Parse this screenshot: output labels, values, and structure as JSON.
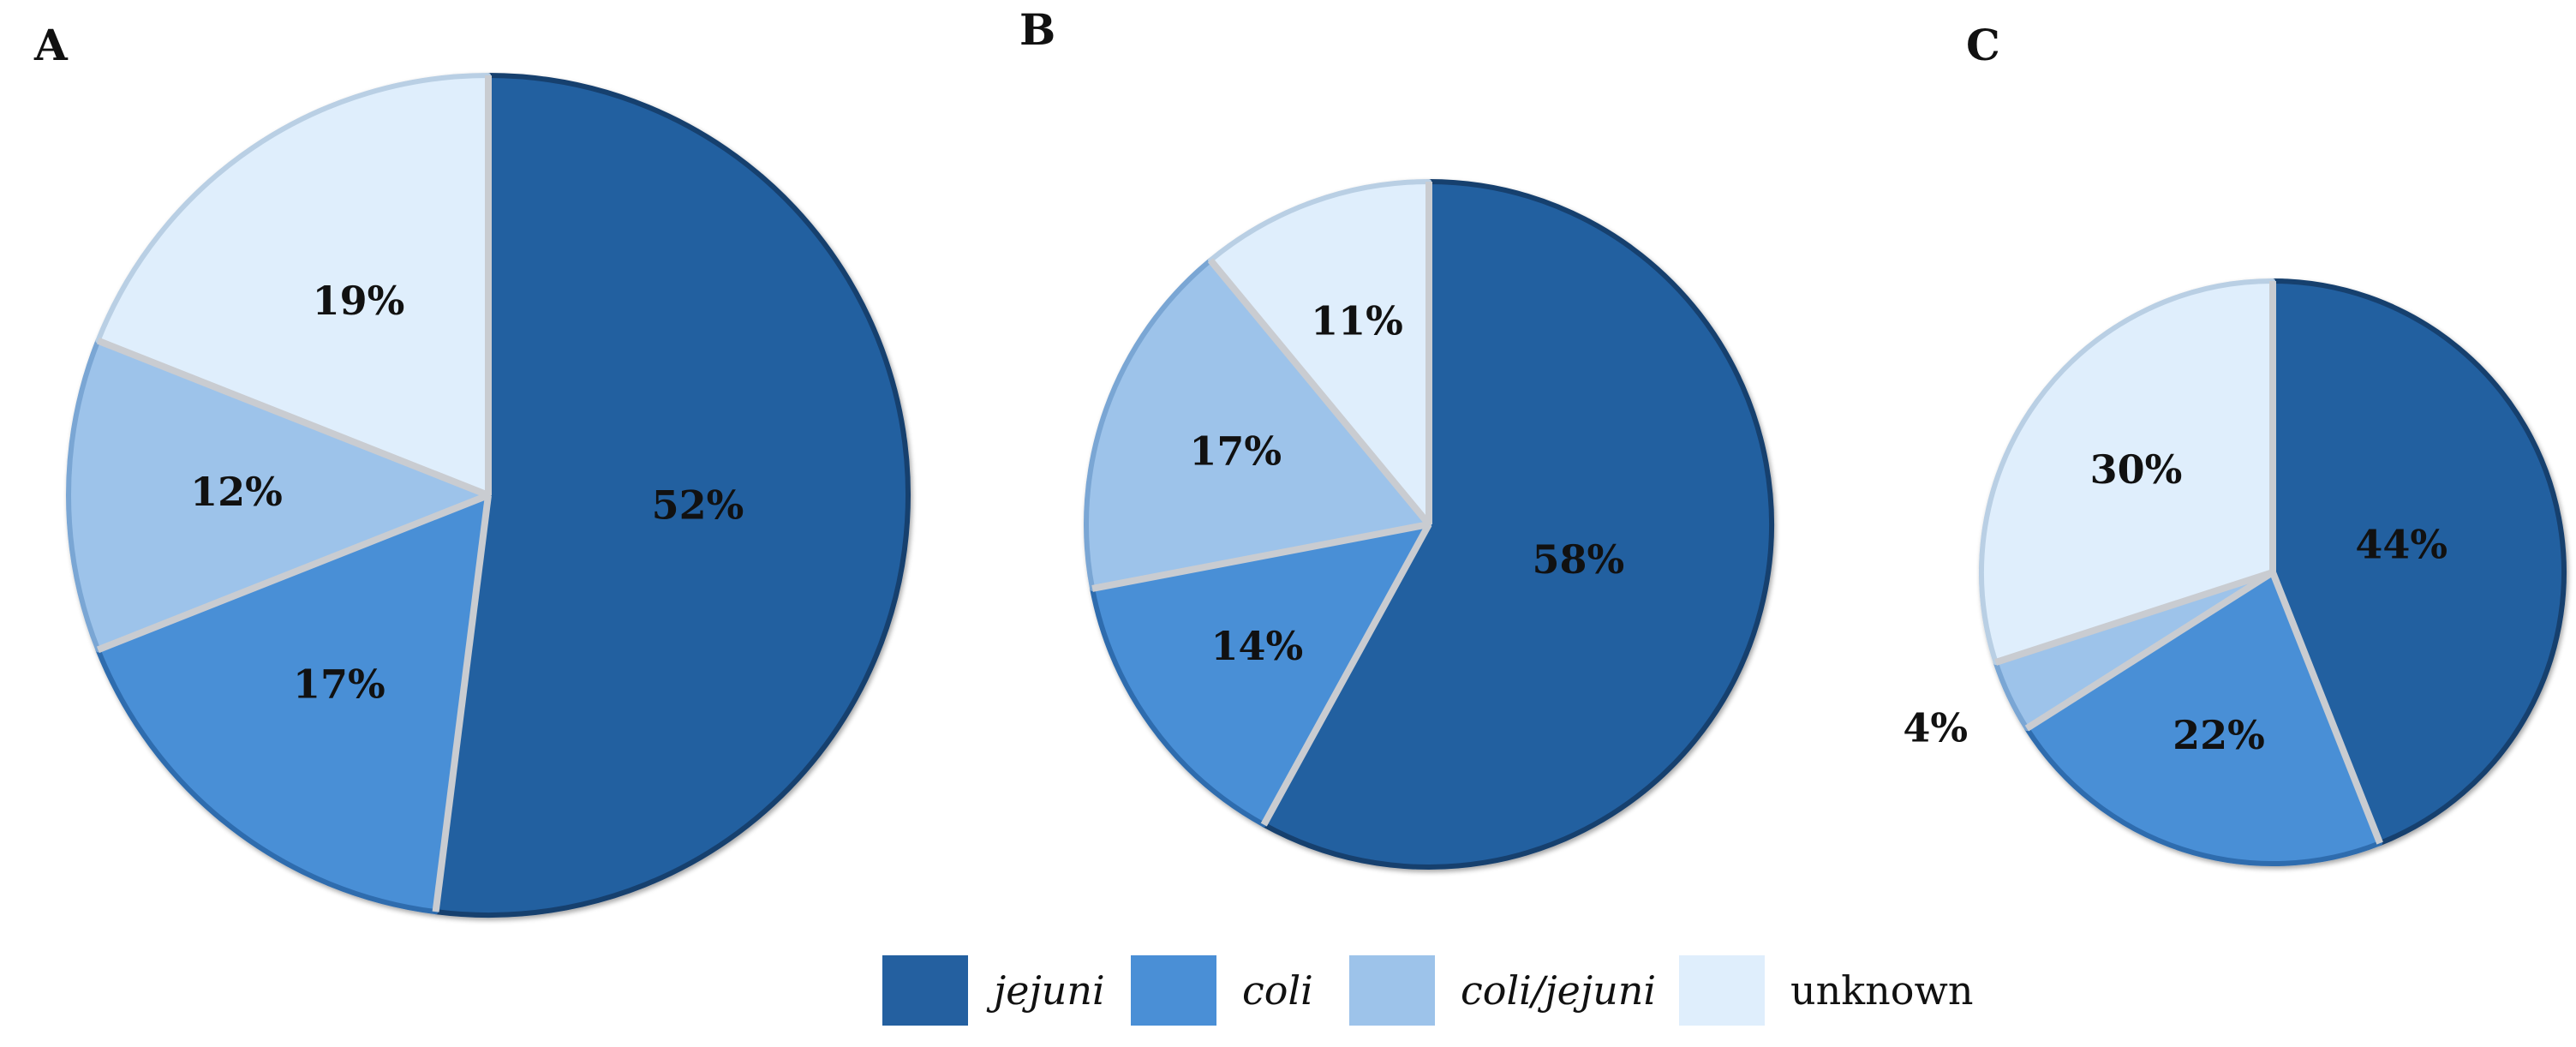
{
  "colors": {
    "jejuni": "#2460a0",
    "coli": "#4a8fd6",
    "coli_jejuni": "#9dc3ea",
    "unknown": "#dfeefc"
  },
  "legend": [
    {
      "key": "jejuni",
      "label": "jejuni",
      "italic": true
    },
    {
      "key": "coli",
      "label": "coli",
      "italic": true
    },
    {
      "key": "coli_jejuni",
      "label": "coli/jejuni",
      "italic": true
    },
    {
      "key": "unknown",
      "label": "unknown",
      "italic": false
    }
  ],
  "chart_data": [
    {
      "type": "pie",
      "panel": "A",
      "categories": [
        "jejuni",
        "coli",
        "coli/jejuni",
        "unknown"
      ],
      "values": [
        52,
        17,
        12,
        19
      ],
      "labels": [
        "52%",
        "17%",
        "12%",
        "19%"
      ]
    },
    {
      "type": "pie",
      "panel": "B",
      "categories": [
        "jejuni",
        "coli",
        "coli/jejuni",
        "unknown"
      ],
      "values": [
        58,
        14,
        17,
        11
      ],
      "labels": [
        "58%",
        "14%",
        "17%",
        "11%"
      ]
    },
    {
      "type": "pie",
      "panel": "C",
      "categories": [
        "jejuni",
        "coli",
        "coli/jejuni",
        "unknown"
      ],
      "values": [
        44,
        22,
        4,
        30
      ],
      "labels": [
        "44%",
        "22%",
        "4%",
        "30%"
      ]
    }
  ]
}
